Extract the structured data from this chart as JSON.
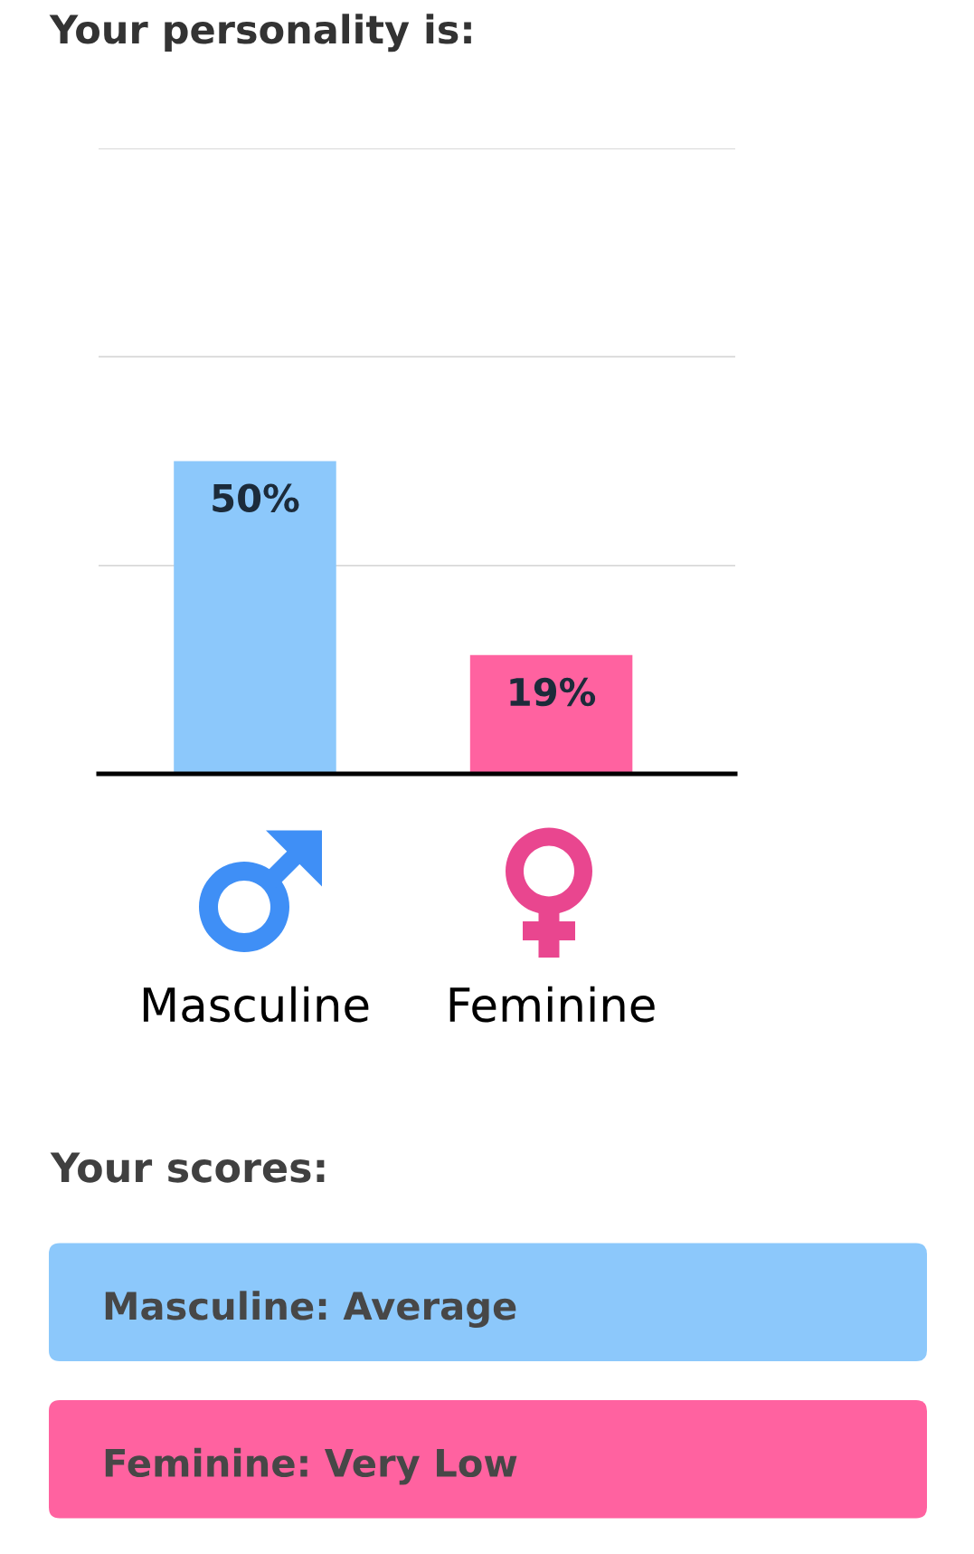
{
  "chart_data": {
    "type": "bar",
    "title": "Your personality is:",
    "categories": [
      "Masculine",
      "Feminine"
    ],
    "values": [
      50,
      19
    ],
    "colors": [
      "#8cc8fb",
      "#ff62a0"
    ],
    "value_labels": [
      "50%",
      "19%"
    ],
    "ylim": [
      0,
      100
    ],
    "yticks": [
      {
        "value": 33.3,
        "label": null
      },
      {
        "value": 66.7,
        "label": null
      },
      {
        "value": 100,
        "label": null
      }
    ],
    "grid": "y",
    "tick_labels": "x",
    "annotations": [
      "Your scores:",
      "Masculine: Average",
      "Feminine: Very Low"
    ]
  }
}
